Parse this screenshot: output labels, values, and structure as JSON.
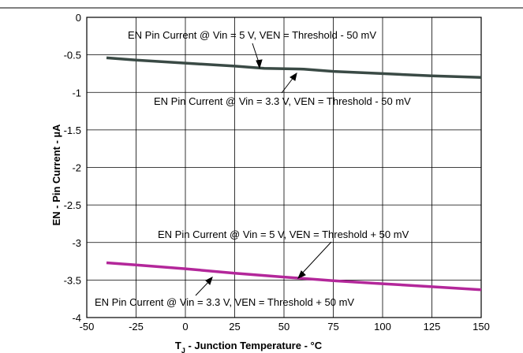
{
  "chart_data": {
    "type": "line",
    "xlabel": "T J - Junction Temperature - °C",
    "xlabel_main": "T",
    "xlabel_sub": "J",
    "xlabel_rest": " - Junction Temperature - °C",
    "ylabel": "EN - Pin Current - µA",
    "xlim": [
      -50,
      150
    ],
    "ylim": [
      -4,
      0
    ],
    "grid": true,
    "x_ticks": [
      -50,
      -25,
      0,
      25,
      50,
      75,
      100,
      125,
      150
    ],
    "x_tick_labels": [
      "-50",
      "-25",
      "0",
      "25",
      "50",
      "75",
      "100",
      "125",
      "150"
    ],
    "y_ticks": [
      0,
      -0.5,
      -1,
      -1.5,
      -2,
      -2.5,
      -3,
      -3.5,
      -4
    ],
    "y_tick_labels": [
      "0",
      "-0.5",
      "-1",
      "-1.5",
      "-2",
      "-2.5",
      "-3",
      "-3.5",
      "-4"
    ],
    "series": [
      {
        "color": "#3a4a45",
        "x": [
          -40,
          -25,
          0,
          25,
          40,
          60,
          75,
          100,
          125,
          150
        ],
        "values": [
          -0.54,
          -0.57,
          -0.61,
          -0.65,
          -0.68,
          -0.69,
          -0.72,
          -0.75,
          -0.78,
          -0.8
        ]
      },
      {
        "color": "#b3279a",
        "x": [
          -40,
          -25,
          0,
          25,
          50,
          75,
          100,
          125,
          150
        ],
        "values": [
          -3.27,
          -3.3,
          -3.35,
          -3.41,
          -3.46,
          -3.51,
          -3.55,
          -3.59,
          -3.63
        ]
      }
    ],
    "annotations": [
      "EN Pin Current @ Vin = 5 V, VEN = Threshold - 50 mV",
      "EN Pin Current @ Vin = 3.3 V, VEN = Threshold - 50 mV",
      "EN Pin Current @ Vin = 5 V, VEN = Threshold + 50 mV",
      "EN Pin Current @ Vin = 3.3 V, VEN = Threshold + 50 mV"
    ]
  }
}
